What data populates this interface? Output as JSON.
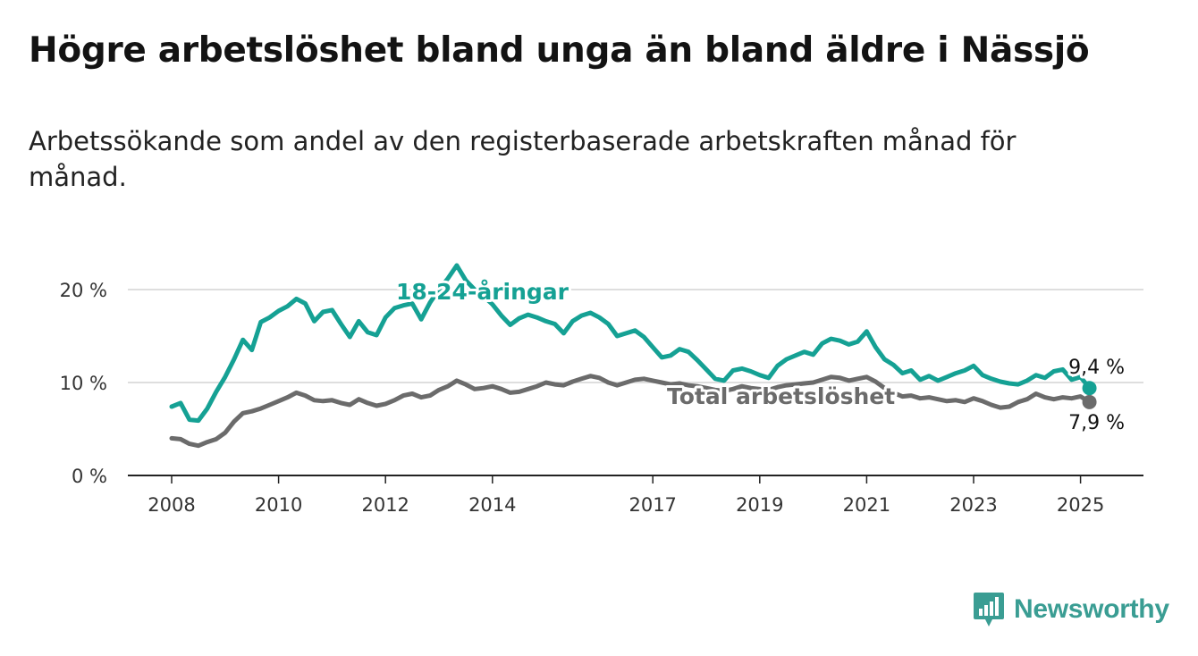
{
  "title": "Högre arbetslöshet bland unga än bland äldre i Nässjö",
  "subtitle": "Arbetssökande som andel av den registerbaserade arbetskraften månad för månad.",
  "brand": {
    "name": "Newsworthy",
    "icon": "newsworthy-logo-icon",
    "color": "#3a9d93"
  },
  "chart_data": {
    "type": "line",
    "x_axis": {
      "ticks": [
        "2008",
        "2010",
        "2012",
        "2014",
        "2017",
        "2019",
        "2021",
        "2023",
        "2025"
      ],
      "range": [
        "2008-01",
        "2025-12"
      ]
    },
    "y_axis": {
      "ticks": [
        "0 %",
        "10 %",
        "20 %"
      ],
      "range": [
        0,
        25
      ],
      "grid": true
    },
    "series": [
      {
        "name": "18-24-åringar",
        "color": "#15a194",
        "end_label": "9,4 %",
        "points": [
          [
            "2008-01",
            7.4
          ],
          [
            "2008-03",
            7.8
          ],
          [
            "2008-05",
            6.0
          ],
          [
            "2008-07",
            5.9
          ],
          [
            "2008-09",
            7.2
          ],
          [
            "2008-11",
            9.0
          ],
          [
            "2009-01",
            10.6
          ],
          [
            "2009-03",
            12.5
          ],
          [
            "2009-05",
            14.6
          ],
          [
            "2009-07",
            13.5
          ],
          [
            "2009-09",
            16.5
          ],
          [
            "2009-11",
            17.0
          ],
          [
            "2010-01",
            17.7
          ],
          [
            "2010-03",
            18.2
          ],
          [
            "2010-05",
            19.0
          ],
          [
            "2010-07",
            18.5
          ],
          [
            "2010-09",
            16.6
          ],
          [
            "2010-11",
            17.6
          ],
          [
            "2011-01",
            17.8
          ],
          [
            "2011-03",
            16.3
          ],
          [
            "2011-05",
            14.9
          ],
          [
            "2011-07",
            16.6
          ],
          [
            "2011-09",
            15.4
          ],
          [
            "2011-11",
            15.1
          ],
          [
            "2012-01",
            17.0
          ],
          [
            "2012-03",
            18.0
          ],
          [
            "2012-05",
            18.3
          ],
          [
            "2012-07",
            18.5
          ],
          [
            "2012-09",
            16.8
          ],
          [
            "2012-11",
            18.6
          ],
          [
            "2013-01",
            20.0
          ],
          [
            "2013-03",
            21.2
          ],
          [
            "2013-05",
            22.6
          ],
          [
            "2013-07",
            21.0
          ],
          [
            "2013-09",
            20.0
          ],
          [
            "2013-11",
            19.3
          ],
          [
            "2014-01",
            18.4
          ],
          [
            "2014-03",
            17.2
          ],
          [
            "2014-05",
            16.2
          ],
          [
            "2014-07",
            16.9
          ],
          [
            "2014-09",
            17.3
          ],
          [
            "2014-11",
            17.0
          ],
          [
            "2015-01",
            16.6
          ],
          [
            "2015-03",
            16.3
          ],
          [
            "2015-05",
            15.3
          ],
          [
            "2015-07",
            16.6
          ],
          [
            "2015-09",
            17.2
          ],
          [
            "2015-11",
            17.5
          ],
          [
            "2016-01",
            17.0
          ],
          [
            "2016-03",
            16.3
          ],
          [
            "2016-05",
            15.0
          ],
          [
            "2016-07",
            15.3
          ],
          [
            "2016-09",
            15.6
          ],
          [
            "2016-11",
            14.9
          ],
          [
            "2017-01",
            13.8
          ],
          [
            "2017-03",
            12.7
          ],
          [
            "2017-05",
            12.9
          ],
          [
            "2017-07",
            13.6
          ],
          [
            "2017-09",
            13.3
          ],
          [
            "2017-11",
            12.4
          ],
          [
            "2018-01",
            11.4
          ],
          [
            "2018-03",
            10.4
          ],
          [
            "2018-05",
            10.2
          ],
          [
            "2018-07",
            11.3
          ],
          [
            "2018-09",
            11.5
          ],
          [
            "2018-11",
            11.2
          ],
          [
            "2019-01",
            10.8
          ],
          [
            "2019-03",
            10.5
          ],
          [
            "2019-05",
            11.8
          ],
          [
            "2019-07",
            12.5
          ],
          [
            "2019-09",
            12.9
          ],
          [
            "2019-11",
            13.3
          ],
          [
            "2020-01",
            13.0
          ],
          [
            "2020-03",
            14.2
          ],
          [
            "2020-05",
            14.7
          ],
          [
            "2020-07",
            14.5
          ],
          [
            "2020-09",
            14.1
          ],
          [
            "2020-11",
            14.4
          ],
          [
            "2021-01",
            15.5
          ],
          [
            "2021-03",
            13.8
          ],
          [
            "2021-05",
            12.5
          ],
          [
            "2021-07",
            11.9
          ],
          [
            "2021-09",
            11.0
          ],
          [
            "2021-11",
            11.3
          ],
          [
            "2022-01",
            10.3
          ],
          [
            "2022-03",
            10.7
          ],
          [
            "2022-05",
            10.2
          ],
          [
            "2022-07",
            10.6
          ],
          [
            "2022-09",
            11.0
          ],
          [
            "2022-11",
            11.3
          ],
          [
            "2023-01",
            11.8
          ],
          [
            "2023-03",
            10.8
          ],
          [
            "2023-05",
            10.4
          ],
          [
            "2023-07",
            10.1
          ],
          [
            "2023-09",
            9.9
          ],
          [
            "2023-11",
            9.8
          ],
          [
            "2024-01",
            10.2
          ],
          [
            "2024-03",
            10.8
          ],
          [
            "2024-05",
            10.5
          ],
          [
            "2024-07",
            11.2
          ],
          [
            "2024-09",
            11.4
          ],
          [
            "2024-11",
            10.3
          ],
          [
            "2025-01",
            10.6
          ],
          [
            "2025-03",
            9.4
          ]
        ]
      },
      {
        "name": "Total arbetslöshet",
        "color": "#6b6b6b",
        "end_label": "7,9 %",
        "points": [
          [
            "2008-01",
            4.0
          ],
          [
            "2008-03",
            3.9
          ],
          [
            "2008-05",
            3.4
          ],
          [
            "2008-07",
            3.2
          ],
          [
            "2008-09",
            3.6
          ],
          [
            "2008-11",
            3.9
          ],
          [
            "2009-01",
            4.6
          ],
          [
            "2009-03",
            5.8
          ],
          [
            "2009-05",
            6.7
          ],
          [
            "2009-07",
            6.9
          ],
          [
            "2009-09",
            7.2
          ],
          [
            "2009-11",
            7.6
          ],
          [
            "2010-01",
            8.0
          ],
          [
            "2010-03",
            8.4
          ],
          [
            "2010-05",
            8.9
          ],
          [
            "2010-07",
            8.6
          ],
          [
            "2010-09",
            8.1
          ],
          [
            "2010-11",
            8.0
          ],
          [
            "2011-01",
            8.1
          ],
          [
            "2011-03",
            7.8
          ],
          [
            "2011-05",
            7.6
          ],
          [
            "2011-07",
            8.2
          ],
          [
            "2011-09",
            7.8
          ],
          [
            "2011-11",
            7.5
          ],
          [
            "2012-01",
            7.7
          ],
          [
            "2012-03",
            8.1
          ],
          [
            "2012-05",
            8.6
          ],
          [
            "2012-07",
            8.8
          ],
          [
            "2012-09",
            8.4
          ],
          [
            "2012-11",
            8.6
          ],
          [
            "2013-01",
            9.2
          ],
          [
            "2013-03",
            9.6
          ],
          [
            "2013-05",
            10.2
          ],
          [
            "2013-07",
            9.8
          ],
          [
            "2013-09",
            9.3
          ],
          [
            "2013-11",
            9.4
          ],
          [
            "2014-01",
            9.6
          ],
          [
            "2014-03",
            9.3
          ],
          [
            "2014-05",
            8.9
          ],
          [
            "2014-07",
            9.0
          ],
          [
            "2014-09",
            9.3
          ],
          [
            "2014-11",
            9.6
          ],
          [
            "2015-01",
            10.0
          ],
          [
            "2015-03",
            9.8
          ],
          [
            "2015-05",
            9.7
          ],
          [
            "2015-07",
            10.1
          ],
          [
            "2015-09",
            10.4
          ],
          [
            "2015-11",
            10.7
          ],
          [
            "2016-01",
            10.5
          ],
          [
            "2016-03",
            10.0
          ],
          [
            "2016-05",
            9.7
          ],
          [
            "2016-07",
            10.0
          ],
          [
            "2016-09",
            10.3
          ],
          [
            "2016-11",
            10.4
          ],
          [
            "2017-01",
            10.2
          ],
          [
            "2017-03",
            10.0
          ],
          [
            "2017-05",
            9.8
          ],
          [
            "2017-07",
            9.9
          ],
          [
            "2017-09",
            9.7
          ],
          [
            "2017-11",
            9.6
          ],
          [
            "2018-01",
            9.4
          ],
          [
            "2018-03",
            9.2
          ],
          [
            "2018-05",
            9.1
          ],
          [
            "2018-07",
            9.3
          ],
          [
            "2018-09",
            9.6
          ],
          [
            "2018-11",
            9.4
          ],
          [
            "2019-01",
            9.3
          ],
          [
            "2019-03",
            9.2
          ],
          [
            "2019-05",
            9.5
          ],
          [
            "2019-07",
            9.7
          ],
          [
            "2019-09",
            9.8
          ],
          [
            "2019-11",
            9.9
          ],
          [
            "2020-01",
            10.0
          ],
          [
            "2020-03",
            10.3
          ],
          [
            "2020-05",
            10.6
          ],
          [
            "2020-07",
            10.5
          ],
          [
            "2020-09",
            10.2
          ],
          [
            "2020-11",
            10.4
          ],
          [
            "2021-01",
            10.6
          ],
          [
            "2021-03",
            10.1
          ],
          [
            "2021-05",
            9.4
          ],
          [
            "2021-07",
            8.9
          ],
          [
            "2021-09",
            8.5
          ],
          [
            "2021-11",
            8.6
          ],
          [
            "2022-01",
            8.3
          ],
          [
            "2022-03",
            8.4
          ],
          [
            "2022-05",
            8.2
          ],
          [
            "2022-07",
            8.0
          ],
          [
            "2022-09",
            8.1
          ],
          [
            "2022-11",
            7.9
          ],
          [
            "2023-01",
            8.3
          ],
          [
            "2023-03",
            8.0
          ],
          [
            "2023-05",
            7.6
          ],
          [
            "2023-07",
            7.3
          ],
          [
            "2023-09",
            7.4
          ],
          [
            "2023-11",
            7.9
          ],
          [
            "2024-01",
            8.2
          ],
          [
            "2024-03",
            8.8
          ],
          [
            "2024-05",
            8.4
          ],
          [
            "2024-07",
            8.2
          ],
          [
            "2024-09",
            8.4
          ],
          [
            "2024-11",
            8.3
          ],
          [
            "2025-01",
            8.5
          ],
          [
            "2025-03",
            7.9
          ]
        ]
      }
    ]
  }
}
